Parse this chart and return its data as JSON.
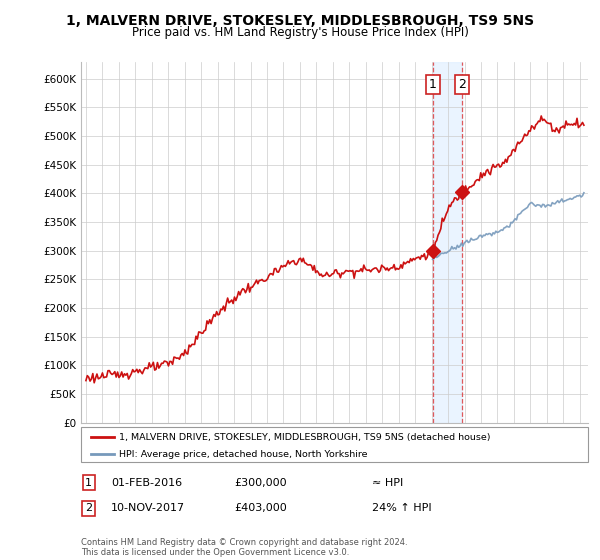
{
  "title": "1, MALVERN DRIVE, STOKESLEY, MIDDLESBROUGH, TS9 5NS",
  "subtitle": "Price paid vs. HM Land Registry's House Price Index (HPI)",
  "title_fontsize": 10,
  "subtitle_fontsize": 8.5,
  "ylabel_ticks": [
    "£0",
    "£50K",
    "£100K",
    "£150K",
    "£200K",
    "£250K",
    "£300K",
    "£350K",
    "£400K",
    "£450K",
    "£500K",
    "£550K",
    "£600K"
  ],
  "ytick_values": [
    0,
    50000,
    100000,
    150000,
    200000,
    250000,
    300000,
    350000,
    400000,
    450000,
    500000,
    550000,
    600000
  ],
  "ylim": [
    0,
    630000
  ],
  "xlim_start": 1994.7,
  "xlim_end": 2025.5,
  "hpi_color": "#7799bb",
  "price_color": "#cc1111",
  "sale1_date": 2016.08,
  "sale1_price": 300000,
  "sale2_date": 2017.86,
  "sale2_price": 403000,
  "legend_line1": "1, MALVERN DRIVE, STOKESLEY, MIDDLESBROUGH, TS9 5NS (detached house)",
  "legend_line2": "HPI: Average price, detached house, North Yorkshire",
  "table_row1": [
    "1",
    "01-FEB-2016",
    "£300,000",
    "≈ HPI"
  ],
  "table_row2": [
    "2",
    "10-NOV-2017",
    "£403,000",
    "24% ↑ HPI"
  ],
  "footer": "Contains HM Land Registry data © Crown copyright and database right 2024.\nThis data is licensed under the Open Government Licence v3.0.",
  "background_color": "#ffffff",
  "grid_color": "#cccccc",
  "shading_color": "#ddeeff"
}
